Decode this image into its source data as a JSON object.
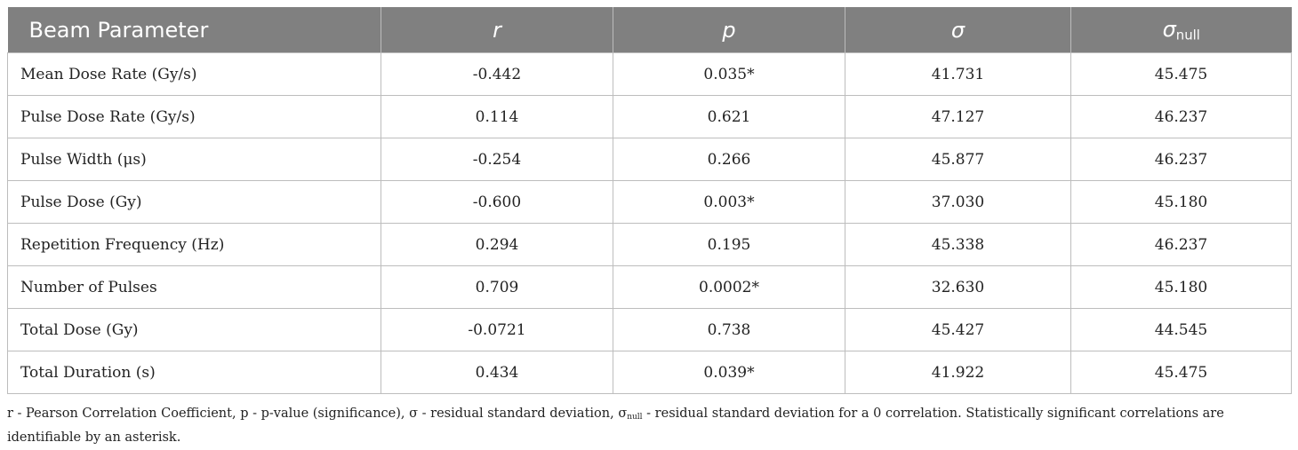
{
  "table": {
    "headers": [
      "Beam Parameter",
      "r",
      "p",
      "σ",
      "σ",
      "null"
    ],
    "rows": [
      [
        "Mean Dose Rate (Gy/s)",
        "-0.442",
        "0.035*",
        "41.731",
        "45.475"
      ],
      [
        "Pulse Dose Rate (Gy/s)",
        "0.114",
        "0.621",
        "47.127",
        "46.237"
      ],
      [
        "Pulse Width (μs)",
        "-0.254",
        "0.266",
        "45.877",
        "46.237"
      ],
      [
        "Pulse Dose (Gy)",
        "-0.600",
        "0.003*",
        "37.030",
        "45.180"
      ],
      [
        "Repetition Frequency (Hz)",
        "0.294",
        "0.195",
        "45.338",
        "46.237"
      ],
      [
        "Number of Pulses",
        "0.709",
        "0.0002*",
        "32.630",
        "45.180"
      ],
      [
        "Total Dose (Gy)",
        "-0.0721",
        "0.738",
        "45.427",
        "44.545"
      ],
      [
        "Total Duration (s)",
        "0.434",
        "0.039*",
        "41.922",
        "45.475"
      ]
    ]
  },
  "footnote": {
    "part1": "r - Pearson Correlation Coefficient, p - p-value (significance), σ - residual standard deviation, σ",
    "sub": "null",
    "part2": " - residual standard deviation for a 0 correlation. Statistically significant correlations are identifiable by an asterisk."
  }
}
